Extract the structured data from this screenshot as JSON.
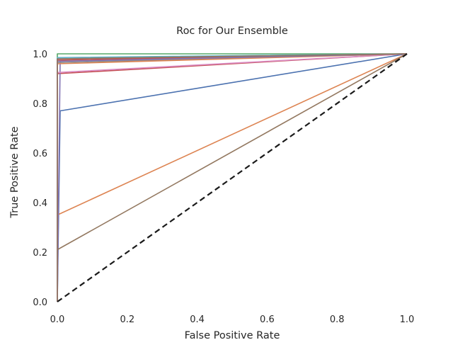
{
  "chart_data": {
    "type": "line",
    "title": "Roc for Our Ensemble",
    "xlabel": "False Positive Rate",
    "ylabel": "True Positive Rate",
    "xlim": [
      0.0,
      1.0
    ],
    "ylim": [
      0.0,
      1.0
    ],
    "xticks": [
      "0.0",
      "0.2",
      "0.4",
      "0.6",
      "0.8",
      "1.0"
    ],
    "yticks": [
      "0.0",
      "0.2",
      "0.4",
      "0.6",
      "0.8",
      "1.0"
    ],
    "grid": false,
    "legend": "none",
    "series": [
      {
        "color": "#4c72b0",
        "x": [
          0.0,
          0.0,
          0.008,
          1.0
        ],
        "y": [
          0.0,
          0.0,
          0.77,
          1.0
        ]
      },
      {
        "color": "#dd8452",
        "x": [
          0.0,
          0.0,
          1.0
        ],
        "y": [
          0.0,
          0.35,
          1.0
        ]
      },
      {
        "color": "#55a868",
        "x": [
          0.0,
          0.0,
          1.0
        ],
        "y": [
          0.0,
          1.0,
          1.0
        ]
      },
      {
        "color": "#c44e52",
        "x": [
          0.0,
          0.0,
          1.0
        ],
        "y": [
          0.0,
          0.92,
          1.0
        ]
      },
      {
        "color": "#8172b3",
        "x": [
          0.0,
          0.0,
          0.008,
          1.0
        ],
        "y": [
          0.0,
          0.0,
          0.97,
          1.0
        ]
      },
      {
        "color": "#937860",
        "x": [
          0.0,
          0.0,
          1.0
        ],
        "y": [
          0.0,
          0.21,
          1.0
        ]
      },
      {
        "color": "#da8bc3",
        "x": [
          0.0,
          0.0,
          1.0
        ],
        "y": [
          0.0,
          0.925,
          1.0
        ]
      },
      {
        "color": "#8c8c8c",
        "x": [
          0.0,
          0.0,
          1.0
        ],
        "y": [
          0.0,
          0.965,
          1.0
        ]
      },
      {
        "color": "#ccb974",
        "x": [
          0.0,
          0.0,
          1.0
        ],
        "y": [
          0.0,
          0.975,
          1.0
        ]
      },
      {
        "color": "#64b5cd",
        "x": [
          0.0,
          0.0,
          1.0
        ],
        "y": [
          0.0,
          0.985,
          1.0
        ]
      },
      {
        "color": "#4c72b0",
        "x": [
          0.0,
          0.0,
          1.0
        ],
        "y": [
          0.0,
          0.98,
          1.0
        ]
      },
      {
        "color": "#dd8452",
        "x": [
          0.0,
          0.0,
          1.0
        ],
        "y": [
          0.0,
          0.96,
          1.0
        ]
      },
      {
        "color": "#c44e52",
        "x": [
          0.0,
          0.0,
          1.0
        ],
        "y": [
          0.0,
          0.975,
          1.0
        ]
      },
      {
        "color": "#8172b3",
        "x": [
          0.0,
          0.0,
          1.0
        ],
        "y": [
          0.0,
          0.97,
          1.0
        ]
      },
      {
        "color": "#937860",
        "x": [
          0.0,
          0.0,
          1.0
        ],
        "y": [
          0.0,
          0.98,
          1.0
        ]
      }
    ],
    "baseline": {
      "color": "#1a1a1a",
      "style": "dashed",
      "x": [
        0.0,
        1.0
      ],
      "y": [
        0.0,
        1.0
      ]
    }
  }
}
